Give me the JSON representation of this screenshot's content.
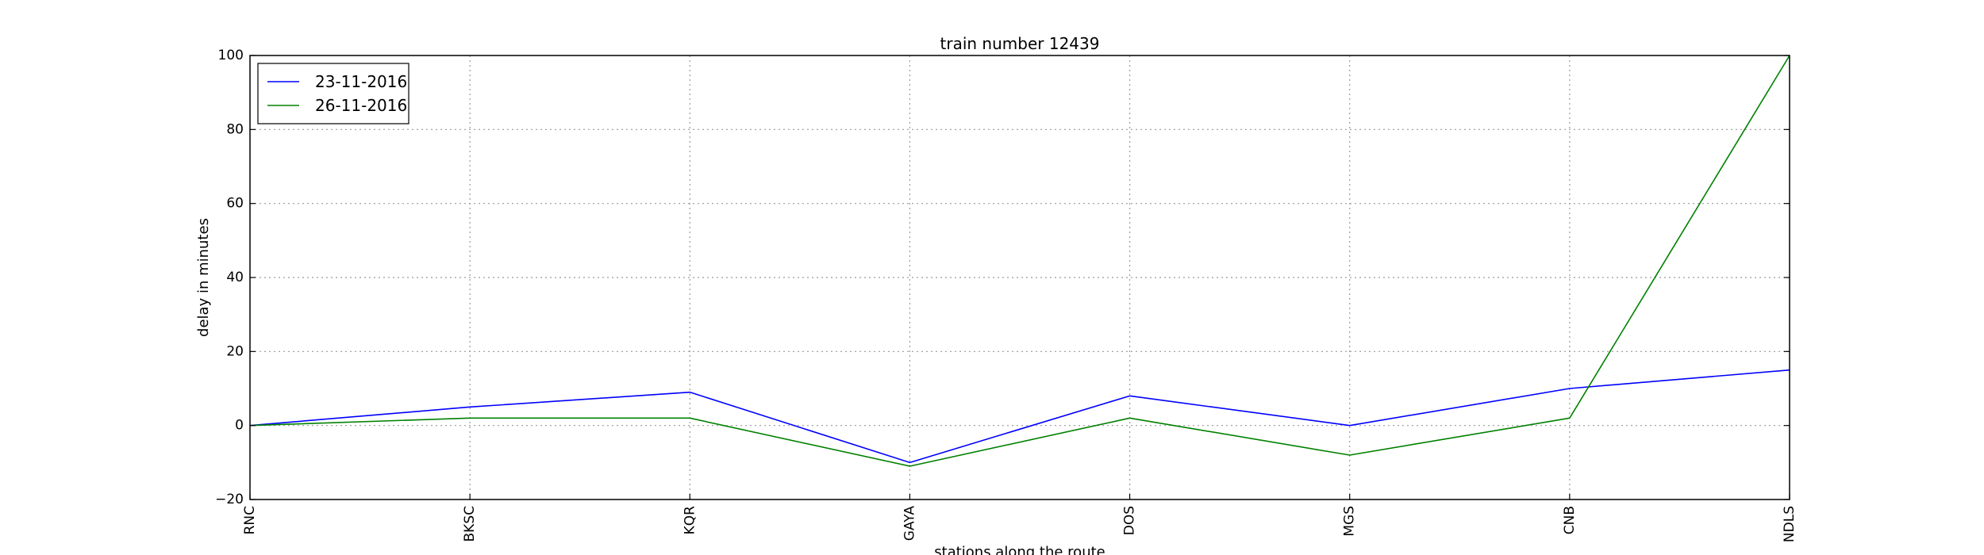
{
  "chart_data": {
    "type": "line",
    "title": "train number 12439",
    "xlabel": "stations along the route",
    "ylabel": "delay in minutes",
    "categories": [
      "RNC",
      "BKSC",
      "KQR",
      "GAYA",
      "DOS",
      "MGS",
      "CNB",
      "NDLS"
    ],
    "ylim": [
      -20,
      100
    ],
    "yticks": [
      -20,
      0,
      20,
      40,
      60,
      80,
      100
    ],
    "grid": true,
    "legend_position": "top-left",
    "series": [
      {
        "name": "23-11-2016",
        "color": "#0000ff",
        "values": [
          0,
          5,
          9,
          -10,
          8,
          0,
          10,
          15
        ]
      },
      {
        "name": "26-11-2016",
        "color": "#008000",
        "values": [
          0,
          2,
          2,
          -11,
          2,
          -8,
          2,
          100
        ]
      }
    ]
  }
}
